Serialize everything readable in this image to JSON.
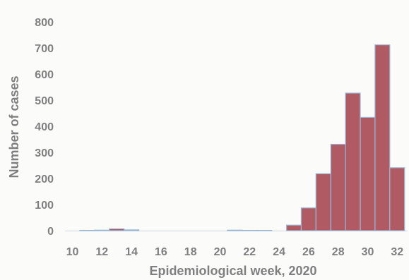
{
  "chart_data": {
    "type": "bar",
    "title": "",
    "xlabel": "Epidemiological week, 2020",
    "ylabel": "Number of cases",
    "x": [
      10,
      11,
      12,
      13,
      14,
      15,
      16,
      17,
      18,
      19,
      20,
      21,
      22,
      23,
      24,
      25,
      26,
      27,
      28,
      29,
      30,
      31,
      32
    ],
    "values": [
      0,
      1,
      2,
      7,
      3,
      0,
      0,
      0,
      0,
      0,
      0,
      2,
      1,
      1,
      0,
      21,
      87,
      218,
      331,
      527,
      434,
      712,
      241
    ],
    "xticks": [
      10,
      12,
      14,
      16,
      18,
      20,
      22,
      24,
      26,
      28,
      30,
      32
    ],
    "yticks": [
      0,
      100,
      200,
      300,
      400,
      500,
      600,
      700,
      800
    ],
    "ylim": [
      0,
      800
    ],
    "grid": false,
    "legend": "none",
    "colors": {
      "bar": "#b05a63",
      "bar_edge": "#9bb7d6",
      "text": "#7f7f7f"
    }
  }
}
